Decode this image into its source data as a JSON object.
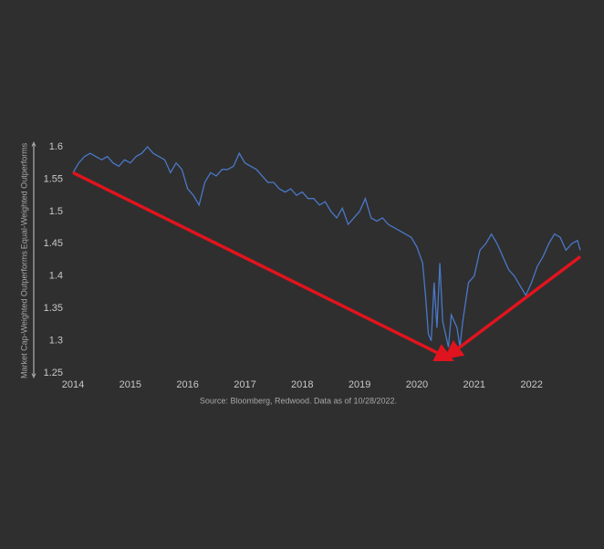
{
  "chart_data": {
    "type": "line",
    "y_label_top": "Equal-Weighted Outperforms",
    "y_label_bottom": "Market Cap-Weighted Outperforms",
    "source": "Source: Bloomberg, Redwood. Data as of 10/28/2022.",
    "x": [
      2014.0,
      2014.1,
      2014.2,
      2014.3,
      2014.4,
      2014.5,
      2014.6,
      2014.7,
      2014.8,
      2014.9,
      2015.0,
      2015.1,
      2015.2,
      2015.3,
      2015.4,
      2015.5,
      2015.6,
      2015.7,
      2015.8,
      2015.9,
      2016.0,
      2016.1,
      2016.2,
      2016.3,
      2016.4,
      2016.5,
      2016.6,
      2016.7,
      2016.8,
      2016.9,
      2017.0,
      2017.1,
      2017.2,
      2017.3,
      2017.4,
      2017.5,
      2017.6,
      2017.7,
      2017.8,
      2017.9,
      2018.0,
      2018.1,
      2018.2,
      2018.3,
      2018.4,
      2018.5,
      2018.6,
      2018.7,
      2018.8,
      2018.9,
      2019.0,
      2019.1,
      2019.2,
      2019.3,
      2019.4,
      2019.5,
      2019.6,
      2019.7,
      2019.8,
      2019.9,
      2020.0,
      2020.1,
      2020.15,
      2020.2,
      2020.25,
      2020.3,
      2020.35,
      2020.4,
      2020.45,
      2020.5,
      2020.55,
      2020.6,
      2020.7,
      2020.75,
      2020.8,
      2020.9,
      2021.0,
      2021.1,
      2021.2,
      2021.3,
      2021.4,
      2021.5,
      2021.6,
      2021.7,
      2021.8,
      2021.9,
      2022.0,
      2022.1,
      2022.2,
      2022.3,
      2022.4,
      2022.5,
      2022.6,
      2022.7,
      2022.8,
      2022.85
    ],
    "series": [
      {
        "color": "#4a78c8",
        "values": [
          1.56,
          1.575,
          1.585,
          1.59,
          1.585,
          1.58,
          1.585,
          1.575,
          1.57,
          1.58,
          1.575,
          1.585,
          1.59,
          1.6,
          1.59,
          1.585,
          1.58,
          1.56,
          1.575,
          1.565,
          1.535,
          1.525,
          1.51,
          1.545,
          1.56,
          1.555,
          1.565,
          1.565,
          1.57,
          1.59,
          1.575,
          1.57,
          1.565,
          1.555,
          1.545,
          1.545,
          1.535,
          1.53,
          1.535,
          1.525,
          1.53,
          1.52,
          1.52,
          1.51,
          1.515,
          1.5,
          1.49,
          1.505,
          1.48,
          1.49,
          1.5,
          1.52,
          1.49,
          1.485,
          1.49,
          1.48,
          1.475,
          1.47,
          1.465,
          1.46,
          1.445,
          1.42,
          1.37,
          1.31,
          1.3,
          1.39,
          1.32,
          1.42,
          1.33,
          1.31,
          1.29,
          1.34,
          1.32,
          1.29,
          1.33,
          1.39,
          1.4,
          1.44,
          1.45,
          1.465,
          1.45,
          1.43,
          1.41,
          1.4,
          1.385,
          1.37,
          1.39,
          1.415,
          1.43,
          1.45,
          1.465,
          1.46,
          1.44,
          1.45,
          1.455,
          1.44
        ]
      }
    ],
    "trend_lines": [
      {
        "color": "#e0141e",
        "x": [
          2014.0,
          2020.5
        ],
        "y": [
          1.56,
          1.275
        ]
      },
      {
        "color": "#e0141e",
        "x": [
          2020.6,
          2022.85
        ],
        "y": [
          1.28,
          1.43
        ]
      }
    ],
    "xlim": [
      2014,
      2022.85
    ],
    "xticks": [
      2014,
      2015,
      2016,
      2017,
      2018,
      2019,
      2020,
      2021,
      2022
    ],
    "ylim": [
      1.25,
      1.6
    ],
    "yticks": [
      1.25,
      1.3,
      1.35,
      1.4,
      1.45,
      1.5,
      1.55,
      1.6
    ]
  }
}
